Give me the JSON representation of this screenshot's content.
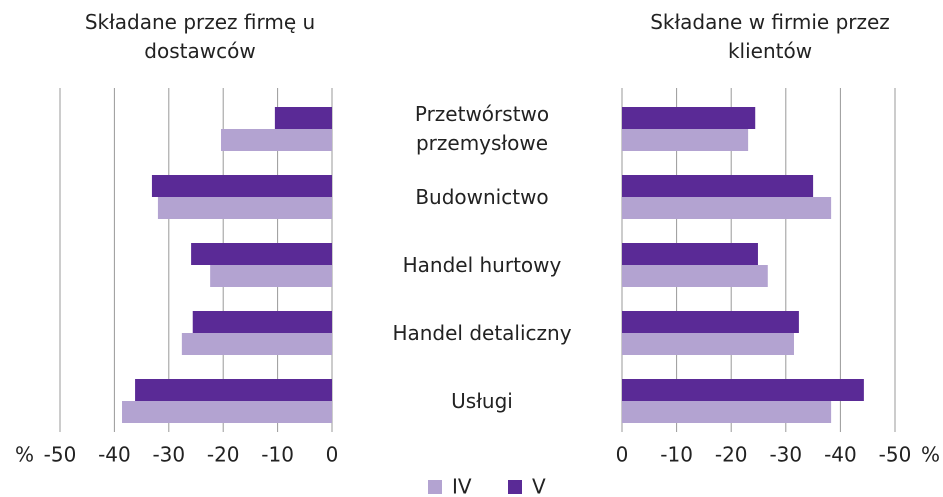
{
  "chart_data": [
    {
      "type": "bar",
      "orientation": "horizontal",
      "title": "Składane przez firmę u dostawców",
      "xlabel": "%",
      "categories": [
        "Przetwórstwo przemysłowe",
        "Budownictwo",
        "Handel hurtowy",
        "Handel detaliczny",
        "Usługi"
      ],
      "series": [
        {
          "name": "IV",
          "color": "#b3a3d1",
          "values": [
            -20.4,
            -32.0,
            -22.4,
            -27.6,
            -38.6
          ]
        },
        {
          "name": "V",
          "color": "#5a2a96",
          "values": [
            -10.5,
            -33.1,
            -25.9,
            -25.6,
            -36.2
          ]
        }
      ],
      "xlim": [
        -50,
        0
      ],
      "xticks": [
        -50,
        -40,
        -30,
        -20,
        -10,
        0
      ],
      "grid": true
    },
    {
      "type": "bar",
      "orientation": "horizontal",
      "title": "Składane w firmie przez klientów",
      "xlabel": "%",
      "series": [
        {
          "color": "#b3a3d1",
          "values": [
            -23.1,
            -38.3,
            -26.7,
            -31.5,
            -38.3
          ]
        },
        {
          "color": "#5a2a96",
          "values": [
            -24.4,
            -35.0,
            -24.9,
            -32.4,
            -44.3
          ]
        }
      ],
      "xlim": [
        0,
        -50
      ],
      "xticks": [
        0,
        -10,
        -20,
        -30,
        -40,
        -50
      ],
      "grid": true
    }
  ]
}
